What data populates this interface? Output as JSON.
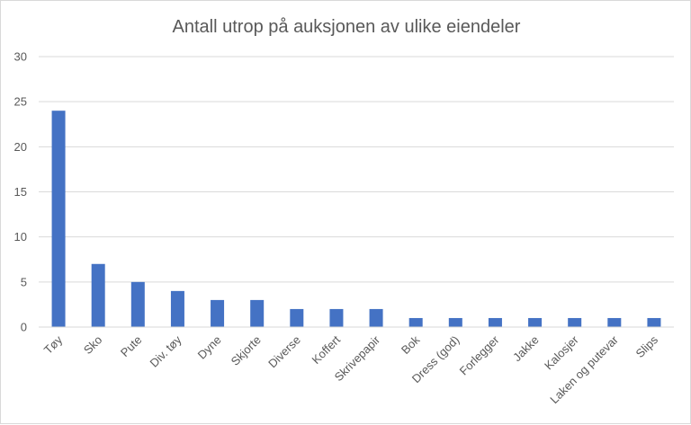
{
  "chart_data": {
    "type": "bar",
    "title": "Antall utrop på auksjonen av ulike eiendeler",
    "xlabel": "",
    "ylabel": "",
    "categories": [
      "Tøy",
      "Sko",
      "Pute",
      "Div. tøy",
      "Dyne",
      "Skjorte",
      "Diverse",
      "Koffert",
      "Skrivepapir",
      "Bok",
      "Dress (god)",
      "Forlegger",
      "Jakke",
      "Kalosjer",
      "Laken og putevar",
      "Slips"
    ],
    "values": [
      24,
      7,
      5,
      4,
      3,
      3,
      2,
      2,
      2,
      1,
      1,
      1,
      1,
      1,
      1,
      1
    ],
    "ylim": [
      0,
      30
    ],
    "yticks": [
      0,
      5,
      10,
      15,
      20,
      25,
      30
    ],
    "grid": true,
    "legend": "none",
    "bar_color": "#4472c4",
    "grid_color": "#d9d9d9"
  }
}
